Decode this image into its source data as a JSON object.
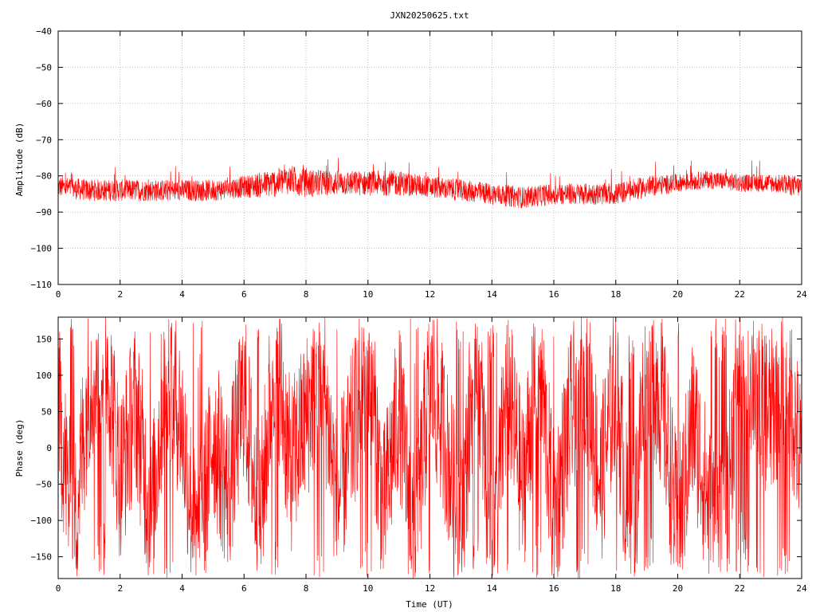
{
  "figure_title": "JXN20250625.txt",
  "x_label": "Time (UT)",
  "colors": {
    "trace": "#ff0000",
    "axes": "#000000",
    "grid": "#a0a0a0",
    "background": "#ffffff"
  },
  "chart_data": [
    {
      "type": "line",
      "title": "JXN20250625.txt",
      "ylabel": "Amplitude (dB)",
      "xlabel": "",
      "xlim": [
        0,
        24
      ],
      "ylim": [
        -110,
        -40
      ],
      "xticks": [
        0,
        2,
        4,
        6,
        8,
        10,
        12,
        14,
        16,
        18,
        20,
        22,
        24
      ],
      "yticks": [
        -110,
        -100,
        -90,
        -80,
        -70,
        -60,
        -50,
        -40
      ],
      "ytick_labels": [
        "−110",
        "−100",
        "−90",
        "−80",
        "−70",
        "−60",
        "−50",
        "−40"
      ],
      "grid": true,
      "series": [
        {
          "color": "#ff0000",
          "x": [
            0,
            1,
            2,
            3,
            4,
            5,
            6,
            7,
            7.5,
            8,
            9,
            10,
            11,
            12,
            13,
            14,
            15,
            16,
            17,
            18,
            19,
            20,
            21,
            22,
            23,
            24
          ],
          "y": [
            -83,
            -84,
            -84,
            -84,
            -84,
            -84,
            -83,
            -82,
            -81,
            -82,
            -82,
            -82,
            -82,
            -83,
            -84,
            -85,
            -86,
            -85,
            -85,
            -85,
            -83,
            -82,
            -81,
            -82,
            -82,
            -83
          ],
          "band_halfwidth_db": [
            3,
            3,
            3,
            3,
            3,
            3,
            3,
            4,
            4,
            4,
            3.5,
            3.5,
            3.5,
            3,
            3,
            3,
            3,
            3,
            3,
            3,
            3,
            2.5,
            2.5,
            2.5,
            2.5,
            3
          ]
        }
      ]
    },
    {
      "type": "line",
      "title": "",
      "ylabel": "Phase (deg)",
      "xlabel": "Time (UT)",
      "xlim": [
        0,
        24
      ],
      "ylim": [
        -180,
        180
      ],
      "xticks": [
        0,
        2,
        4,
        6,
        8,
        10,
        12,
        14,
        16,
        18,
        20,
        22,
        24
      ],
      "yticks": [
        -150,
        -100,
        -50,
        0,
        50,
        100,
        150
      ],
      "ytick_labels": [
        "−150",
        "−100",
        "−50",
        "0",
        "50",
        "100",
        "150"
      ],
      "grid": false,
      "series": [
        {
          "color": "#ff0000",
          "x": [
            0,
            0.5,
            1,
            1.5,
            2,
            2.5,
            3,
            3.5,
            4,
            4.5,
            5,
            5.5,
            6,
            6.5,
            7,
            7.5,
            8,
            8.5,
            9,
            9.5,
            10,
            10.5,
            11,
            11.5,
            12,
            12.5,
            13,
            13.5,
            14,
            14.5,
            15,
            15.5,
            16,
            16.5,
            17,
            17.5,
            18,
            18.5,
            19,
            19.5,
            20,
            20.5,
            21,
            21.5,
            22,
            22.5,
            23,
            23.5,
            24
          ],
          "y": [
            60,
            -120,
            90,
            150,
            -40,
            60,
            -100,
            120,
            30,
            -150,
            20,
            -60,
            80,
            -110,
            140,
            -30,
            40,
            120,
            -80,
            20,
            130,
            -90,
            60,
            -140,
            100,
            10,
            -120,
            160,
            -170,
            90,
            -60,
            140,
            -100,
            30,
            120,
            -50,
            90,
            -160,
            140,
            60,
            -120,
            40,
            -80,
            -140,
            160,
            90,
            40,
            120,
            -30
          ]
        }
      ]
    }
  ]
}
